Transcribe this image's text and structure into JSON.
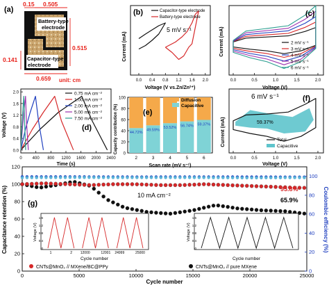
{
  "panels": {
    "a": {
      "letter": "(a)",
      "dims": {
        "w_top": "0.15",
        "w_right": "0.505",
        "h_right": "0.515",
        "h_left": "0.141",
        "w_bottom": "0.659"
      },
      "battery_label_1": "Battery-type",
      "battery_label_2": "electrode",
      "capacitor_label_1": "Capacitor-type",
      "capacitor_label_2": "electrode",
      "unit": "unit: cm",
      "colors": {
        "frame": "#111111",
        "electrode": "#c9a36a",
        "dim_lines": "#e8221b"
      }
    },
    "b": {
      "letter": "(b)",
      "annotation": "5 mV s⁻¹",
      "xlabel": "Voltage (V vs.Zn/Zn²⁺)",
      "ylabel": "Current (mA)"
    },
    "c": {
      "letter": "(c)",
      "xlabel": "Voltage (V)",
      "ylabel": "Current (mA)"
    },
    "d": {
      "letter": "(d)",
      "xlabel": "Time (s)",
      "ylabel": "Voltage (V)"
    },
    "e": {
      "letter": "(e)",
      "xlabel": "Scan rate (mV s⁻¹)",
      "ylabel": "Capacity contribution (%)"
    },
    "f": {
      "letter": "(f)",
      "annotation": "6 mV s⁻¹",
      "pct_label": "59.37%",
      "xlabel": "Voltage (V)",
      "ylabel": "Current (mA)"
    },
    "g": {
      "letter": "(g)",
      "xlabel": "Cycle number",
      "ylabel_left": "Capacitance retention (%)",
      "ylabel_right": "Coulombic efficiency (%)",
      "annotation_current": "10 mA cm⁻²",
      "pct_red": "95.8%",
      "pct_black": "65.9%",
      "legend_red": "CNTs@MnO₂ // MXene/BC@PPy",
      "legend_black": "CNTs@MnO₂ // pure MXene",
      "inset_ylabel": "Voltage (V)",
      "inset_xlabel": "Cycle number",
      "inset_left_ticks": [
        "1",
        "2",
        "12000",
        "12001",
        "24999",
        "25000"
      ],
      "inset_y_ticks": [
        "0",
        "0.4",
        "0.8",
        "1.2",
        "1.6"
      ]
    }
  },
  "chart_data": [
    {
      "panel": "b",
      "type": "line",
      "x_ticks": [
        0,
        0.4,
        0.8,
        1.2,
        1.6,
        2.0
      ],
      "xlim": [
        -0.25,
        2.15
      ],
      "ylim": [
        -1,
        1
      ],
      "legend_position": "top-left",
      "series": [
        {
          "name": "Capacitor-type electrode",
          "color": "#111111",
          "x": [
            0,
            0.2,
            0.4,
            0.6,
            0.8,
            0.6,
            0.4,
            0.2,
            0
          ],
          "y": [
            0.05,
            0.18,
            0.3,
            0.42,
            0.5,
            0.18,
            0.0,
            -0.15,
            -0.25
          ]
        },
        {
          "name": "Battery-type electrode",
          "color": "#d62728",
          "x": [
            0.8,
            1.1,
            1.3,
            1.45,
            1.6,
            1.7,
            1.8,
            1.6,
            1.5,
            1.35,
            1.2,
            1.0,
            0.8
          ],
          "y": [
            -0.2,
            -0.05,
            0.1,
            0.25,
            0.5,
            0.75,
            0.85,
            -0.1,
            -0.2,
            -0.45,
            -0.55,
            -0.35,
            -0.2
          ]
        }
      ]
    },
    {
      "panel": "c",
      "type": "line",
      "x_ticks": [
        0,
        0.5,
        1.0,
        1.5,
        2.0
      ],
      "xlim": [
        0,
        2.0
      ],
      "legend_position": "bottom-right",
      "series": [
        {
          "name": "2 mV s⁻¹",
          "color": "#111111",
          "amplitude": 1
        },
        {
          "name": "3 mV s⁻¹",
          "color": "#d62728",
          "amplitude": 1.35
        },
        {
          "name": "4 mV s⁻¹",
          "color": "#1f3fbf",
          "amplitude": 1.7
        },
        {
          "name": "5 mV s⁻¹",
          "color": "#9b2fae",
          "amplitude": 2.05
        },
        {
          "name": "6 mV s⁻¹",
          "color": "#2a9d8f",
          "amplitude": 2.4
        }
      ]
    },
    {
      "panel": "d",
      "type": "line",
      "x_ticks": [
        0,
        400,
        800,
        1200,
        1600,
        2000,
        2400
      ],
      "y_ticks": [
        0,
        0.4,
        0.8,
        1.2,
        1.6,
        2.0
      ],
      "xlim": [
        0,
        2400
      ],
      "ylim": [
        -0.1,
        2.1
      ],
      "series": [
        {
          "name": "0.75 mA cm⁻²",
          "color": "#111111",
          "x": [
            0,
            500,
            1000,
            1620,
            1900,
            2300
          ],
          "y": [
            0,
            0.7,
            1.3,
            1.85,
            1.0,
            0.0
          ]
        },
        {
          "name": "1.00 mA cm⁻²",
          "color": "#d62728",
          "x": [
            0,
            300,
            600,
            900,
            1080,
            1400
          ],
          "y": [
            0,
            0.7,
            1.3,
            1.85,
            1.0,
            0.0
          ]
        },
        {
          "name": "2.00 mA cm⁻²",
          "color": "#1f3fbf",
          "x": [
            0,
            120,
            250,
            390,
            470,
            600
          ],
          "y": [
            0,
            0.7,
            1.3,
            1.85,
            1.0,
            0.0
          ]
        },
        {
          "name": "5.00 mA cm⁻²",
          "color": "#9b2fae",
          "x": [
            0,
            40,
            80,
            125,
            150,
            200
          ],
          "y": [
            0,
            0.7,
            1.3,
            1.85,
            1.0,
            0.0
          ]
        },
        {
          "name": "7.50 mA cm⁻²",
          "color": "#2a9d8f",
          "x": [
            0,
            25,
            50,
            80,
            100,
            130
          ],
          "y": [
            0,
            0.7,
            1.3,
            1.85,
            1.0,
            0.0
          ]
        }
      ]
    },
    {
      "panel": "e",
      "type": "bar",
      "stacked": true,
      "categories": [
        "2",
        "3",
        "4",
        "5",
        "6"
      ],
      "ylim": [
        0,
        100
      ],
      "y_ticks": [
        0,
        20,
        40,
        60,
        80,
        100
      ],
      "legend_position": "top-right",
      "series": [
        {
          "name": "Capacitive",
          "color": "#7fd3d6",
          "values": [
            44.72,
            49.59,
            53.52,
            56.74,
            59.37
          ],
          "labels": [
            "44.72%",
            "49.59%",
            "53.52%",
            "56.74%",
            "59.37%"
          ]
        },
        {
          "name": "Diffusion",
          "color": "#f5a94a",
          "values": [
            55.28,
            50.41,
            46.48,
            43.26,
            40.63
          ]
        }
      ]
    },
    {
      "panel": "f",
      "type": "area",
      "x_ticks": [
        0,
        0.5,
        1.0,
        1.5,
        2.0
      ],
      "xlim": [
        0,
        2.0
      ],
      "legend_position": "bottom-right",
      "series": [
        {
          "name": "Total",
          "color": "#111111"
        },
        {
          "name": "Capacitive",
          "color": "#5ec4cc"
        }
      ]
    },
    {
      "panel": "g",
      "type": "scatter",
      "x_ticks": [
        0,
        5000,
        10000,
        15000,
        20000,
        25000
      ],
      "xlim": [
        0,
        25000
      ],
      "y_left_ticks": [
        0,
        20,
        40,
        60,
        80,
        100,
        120
      ],
      "ylim_left": [
        0,
        120
      ],
      "y_right_ticks": [
        0,
        20,
        40,
        60,
        80,
        100
      ],
      "series": [
        {
          "name": "CNTs@MnO₂ // MXene/BC@PPy retention",
          "color": "#d62728",
          "x": [
            0,
            2000,
            4000,
            6000,
            8000,
            10000,
            12000,
            14000,
            16000,
            18000,
            20000,
            22000,
            24000,
            25000
          ],
          "y": [
            100,
            101,
            100,
            99,
            100,
            100,
            99,
            99,
            100,
            99,
            98,
            97,
            96,
            95.8
          ]
        },
        {
          "name": "CNTs@MnO₂ // pure MXene retention",
          "color": "#111111",
          "x": [
            0,
            1500,
            3000,
            4500,
            6000,
            7500,
            9000,
            11000,
            13000,
            15000,
            17000,
            19000,
            21000,
            23000,
            25000
          ],
          "y": [
            100,
            96,
            99,
            103,
            98,
            82,
            73,
            68,
            66,
            70,
            76,
            72,
            70,
            69,
            65.9
          ]
        },
        {
          "name": "CNTs@MnO₂ // MXene/BC@PPy efficiency",
          "color": "#1f3fbf",
          "x": [
            0,
            5000,
            10000,
            15000,
            20000,
            25000
          ],
          "y": [
            99.5,
            99.5,
            99.3,
            99.4,
            99.3,
            99.2
          ]
        },
        {
          "name": "CNTs@MnO₂ // pure MXene efficiency",
          "color": "#5bb5d8",
          "x": [
            0,
            5000,
            10000,
            15000,
            20000,
            25000
          ],
          "y": [
            98.5,
            98.8,
            98.6,
            98.7,
            98.4,
            98.6
          ]
        }
      ]
    }
  ]
}
